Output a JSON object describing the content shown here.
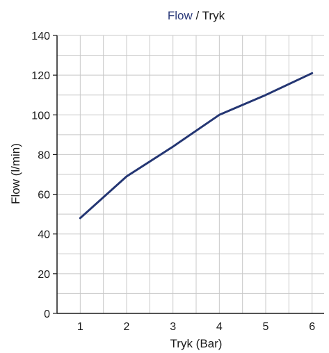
{
  "title": {
    "part1": "Flow",
    "sep": " / ",
    "part2": "Tryk",
    "part1_color": "#2b3a7a",
    "part2_color": "#1a1a1a"
  },
  "chart_data": {
    "type": "line",
    "title": "Flow / Tryk",
    "xlabel": "Tryk (Bar)",
    "ylabel": "Flow (l/min)",
    "x": [
      1,
      2,
      3,
      4,
      5,
      6
    ],
    "xlim": [
      0.5,
      6.5
    ],
    "ylim": [
      0,
      140
    ],
    "xticks": [
      "1",
      "2",
      "3",
      "4",
      "5",
      "6"
    ],
    "yticks": [
      "0",
      "20",
      "40",
      "60",
      "80",
      "100",
      "120",
      "140"
    ],
    "grid": true,
    "series": [
      {
        "values": [
          48,
          69,
          84,
          100,
          110,
          121
        ],
        "color": "#243673"
      }
    ]
  }
}
